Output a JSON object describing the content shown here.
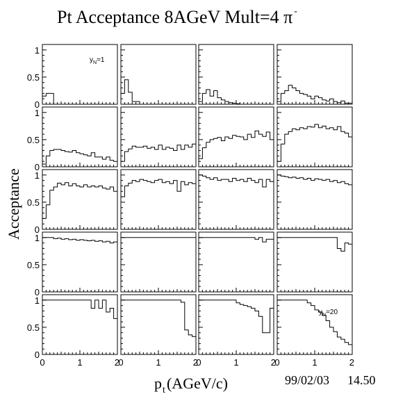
{
  "title": {
    "main": "Pt Acceptance 8AGeV Mult=4 π",
    "superscript": "-"
  },
  "ylabel": "Acceptance",
  "xlabel": {
    "base": "p",
    "subscript": "t",
    "rest": " (AGeV/c)"
  },
  "timestamp": {
    "date": "99/02/03",
    "time": "14.50"
  },
  "annotations": {
    "first": {
      "base": "y",
      "sub": "N",
      "rest": "=1"
    },
    "last": {
      "base": "y",
      "sub": "N",
      "rest": "=20"
    }
  },
  "chart_data": {
    "type": "histogram-grid",
    "rows": 5,
    "cols": 4,
    "xlim": [
      0,
      2
    ],
    "ylim": [
      0,
      1.1
    ],
    "xticks": [
      {
        "value": 0,
        "label": "0"
      },
      {
        "value": 1,
        "label": "1"
      },
      {
        "value": 2,
        "label": "2"
      }
    ],
    "yticks": [
      {
        "value": 0,
        "label": "0"
      },
      {
        "value": 0.5,
        "label": "0.5"
      },
      {
        "value": 1,
        "label": "1"
      }
    ],
    "bin_width": 0.1,
    "panels": [
      {
        "panel": 1,
        "values": [
          0.15,
          0.2,
          0.2,
          0,
          0,
          0,
          0,
          0,
          0,
          0,
          0,
          0,
          0,
          0,
          0,
          0,
          0,
          0,
          0,
          0
        ]
      },
      {
        "panel": 2,
        "values": [
          0.2,
          0.45,
          0.22,
          0.05,
          0.05,
          0,
          0,
          0,
          0,
          0,
          0,
          0,
          0,
          0,
          0,
          0,
          0,
          0,
          0,
          0
        ]
      },
      {
        "panel": 3,
        "values": [
          0.05,
          0.2,
          0.27,
          0.15,
          0.25,
          0.12,
          0.08,
          0.05,
          0.03,
          0.02,
          0.01,
          0,
          0,
          0,
          0,
          0,
          0,
          0,
          0,
          0
        ]
      },
      {
        "panel": 4,
        "values": [
          0.05,
          0.2,
          0.25,
          0.35,
          0.3,
          0.25,
          0.2,
          0.18,
          0.15,
          0.1,
          0.15,
          0.12,
          0.08,
          0.06,
          0.1,
          0.05,
          0.03,
          0.06,
          0.02,
          0.02
        ]
      },
      {
        "panel": 5,
        "values": [
          0.05,
          0.2,
          0.3,
          0.32,
          0.32,
          0.3,
          0.28,
          0.27,
          0.3,
          0.26,
          0.24,
          0.22,
          0.2,
          0.26,
          0.18,
          0.18,
          0.14,
          0.18,
          0.12,
          0.1
        ]
      },
      {
        "panel": 6,
        "values": [
          0.1,
          0.28,
          0.33,
          0.38,
          0.36,
          0.36,
          0.38,
          0.34,
          0.36,
          0.32,
          0.4,
          0.32,
          0.36,
          0.34,
          0.3,
          0.4,
          0.32,
          0.4,
          0.36,
          0.42
        ]
      },
      {
        "panel": 7,
        "values": [
          0.15,
          0.35,
          0.45,
          0.5,
          0.52,
          0.54,
          0.48,
          0.55,
          0.52,
          0.58,
          0.56,
          0.55,
          0.5,
          0.6,
          0.54,
          0.66,
          0.6,
          0.56,
          0.64,
          0.5
        ]
      },
      {
        "panel": 8,
        "values": [
          0.1,
          0.42,
          0.6,
          0.65,
          0.7,
          0.68,
          0.72,
          0.7,
          0.74,
          0.73,
          0.78,
          0.72,
          0.75,
          0.7,
          0.72,
          0.68,
          0.74,
          0.65,
          0.62,
          0.55
        ]
      },
      {
        "panel": 9,
        "values": [
          0.2,
          0.45,
          0.72,
          0.78,
          0.85,
          0.82,
          0.86,
          0.8,
          0.84,
          0.8,
          0.78,
          0.82,
          0.78,
          0.8,
          0.78,
          0.8,
          0.76,
          0.74,
          0.78,
          0.7
        ]
      },
      {
        "panel": 10,
        "values": [
          0.6,
          0.8,
          0.85,
          0.9,
          0.88,
          0.92,
          0.9,
          0.88,
          0.86,
          0.9,
          0.92,
          0.86,
          0.88,
          0.84,
          0.9,
          0.7,
          0.88,
          0.82,
          0.86,
          0.84
        ]
      },
      {
        "panel": 11,
        "values": [
          1.0,
          0.98,
          0.95,
          0.92,
          0.95,
          0.9,
          0.92,
          0.92,
          0.88,
          0.94,
          0.9,
          0.92,
          0.88,
          0.94,
          0.9,
          0.86,
          0.92,
          0.78,
          0.92,
          0.88
        ]
      },
      {
        "panel": 12,
        "values": [
          1.0,
          0.98,
          0.97,
          0.95,
          0.96,
          0.94,
          0.95,
          0.92,
          0.94,
          0.9,
          0.93,
          0.92,
          0.9,
          0.92,
          0.88,
          0.9,
          0.86,
          0.88,
          0.84,
          0.82
        ]
      },
      {
        "panel": 13,
        "values": [
          1,
          1,
          1,
          0.98,
          0.99,
          0.97,
          0.98,
          0.96,
          0.97,
          0.95,
          0.96,
          0.95,
          0.94,
          0.95,
          0.93,
          0.94,
          0.92,
          0.93,
          0.9,
          0.92
        ]
      },
      {
        "panel": 14,
        "values": [
          1,
          1,
          1,
          1,
          1,
          1,
          1,
          1,
          1,
          1,
          1,
          1,
          1,
          1,
          1,
          1,
          1,
          1,
          1,
          1
        ]
      },
      {
        "panel": 15,
        "values": [
          1,
          1,
          1,
          1,
          1,
          1,
          1,
          1,
          1,
          1,
          1,
          1,
          1,
          1,
          1,
          0.97,
          1,
          0.92,
          0.97,
          0.97
        ]
      },
      {
        "panel": 16,
        "values": [
          1,
          1,
          1,
          1,
          1,
          1,
          1,
          1,
          1,
          1,
          1,
          1,
          1,
          1,
          1,
          1,
          0.8,
          0.75,
          0.9,
          0.88
        ]
      },
      {
        "panel": 17,
        "values": [
          1,
          1,
          1,
          1,
          1,
          1,
          1,
          1,
          1,
          1,
          1,
          1,
          1,
          0.85,
          1,
          0.85,
          1,
          0.78,
          0.85,
          0.66
        ]
      },
      {
        "panel": 18,
        "values": [
          1,
          1,
          1,
          1,
          1,
          1,
          1,
          1,
          1,
          1,
          1,
          1,
          1,
          1,
          1,
          1,
          0.96,
          0.45,
          0.36,
          0.33
        ]
      },
      {
        "panel": 19,
        "values": [
          1,
          1,
          1,
          1,
          1,
          1,
          1,
          1,
          1,
          1,
          0.95,
          0.92,
          0.9,
          0.88,
          0.85,
          0.8,
          0.7,
          0.4,
          0.4,
          0.85
        ]
      },
      {
        "panel": 20,
        "values": [
          1,
          1,
          1,
          1,
          1,
          1,
          1,
          1,
          0.95,
          0.9,
          0.82,
          0.78,
          0.72,
          0.62,
          0.5,
          0.42,
          0.32,
          0.28,
          0.22,
          0.18
        ]
      }
    ]
  }
}
